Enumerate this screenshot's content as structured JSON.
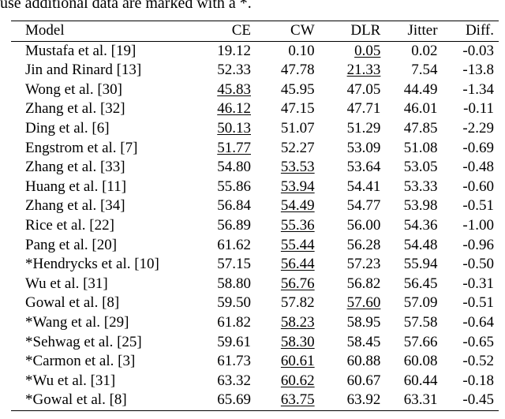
{
  "caption": "use additional data are marked with a *.",
  "table": {
    "headers": [
      "Model",
      "CE",
      "CW",
      "DLR",
      "Jitter",
      "Diff."
    ],
    "rows": [
      {
        "model": "Mustafa et al. [19]",
        "ce": "19.12",
        "cw": "0.10",
        "dlr": "0.05",
        "jitter": "0.02",
        "diff": "-0.03",
        "underline": "dlr"
      },
      {
        "model": "Jin and Rinard [13]",
        "ce": "52.33",
        "cw": "47.78",
        "dlr": "21.33",
        "jitter": "7.54",
        "diff": "-13.8",
        "underline": "dlr"
      },
      {
        "model": "Wong et al. [30]",
        "ce": "45.83",
        "cw": "45.95",
        "dlr": "47.05",
        "jitter": "44.49",
        "diff": "-1.34",
        "underline": "ce"
      },
      {
        "model": "Zhang et al. [32]",
        "ce": "46.12",
        "cw": "47.15",
        "dlr": "47.71",
        "jitter": "46.01",
        "diff": "-0.11",
        "underline": "ce"
      },
      {
        "model": "Ding et al. [6]",
        "ce": "50.13",
        "cw": "51.07",
        "dlr": "51.29",
        "jitter": "47.85",
        "diff": "-2.29",
        "underline": "ce"
      },
      {
        "model": "Engstrom et al. [7]",
        "ce": "51.77",
        "cw": "52.27",
        "dlr": "53.09",
        "jitter": "51.08",
        "diff": "-0.69",
        "underline": "ce"
      },
      {
        "model": "Zhang et al. [33]",
        "ce": "54.80",
        "cw": "53.53",
        "dlr": "53.64",
        "jitter": "53.05",
        "diff": "-0.48",
        "underline": "cw"
      },
      {
        "model": "Huang et al. [11]",
        "ce": "55.86",
        "cw": "53.94",
        "dlr": "54.41",
        "jitter": "53.33",
        "diff": "-0.60",
        "underline": "cw"
      },
      {
        "model": "Zhang et al. [34]",
        "ce": "56.84",
        "cw": "54.49",
        "dlr": "54.77",
        "jitter": "53.98",
        "diff": "-0.51",
        "underline": "cw"
      },
      {
        "model": "Rice et al. [22]",
        "ce": "56.89",
        "cw": "55.36",
        "dlr": "56.00",
        "jitter": "54.36",
        "diff": "-1.00",
        "underline": "cw"
      },
      {
        "model": "Pang et al. [20]",
        "ce": "61.62",
        "cw": "55.44",
        "dlr": "56.28",
        "jitter": "54.48",
        "diff": "-0.96",
        "underline": "cw"
      },
      {
        "model": "*Hendrycks et al. [10]",
        "ce": "57.15",
        "cw": "56.44",
        "dlr": "57.23",
        "jitter": "55.94",
        "diff": "-0.50",
        "underline": "cw"
      },
      {
        "model": "Wu et al. [31]",
        "ce": "58.80",
        "cw": "56.76",
        "dlr": "56.82",
        "jitter": "56.45",
        "diff": "-0.31",
        "underline": "cw"
      },
      {
        "model": "Gowal et al. [8]",
        "ce": "59.50",
        "cw": "57.82",
        "dlr": "57.60",
        "jitter": "57.09",
        "diff": "-0.51",
        "underline": "dlr"
      },
      {
        "model": "*Wang et al. [29]",
        "ce": "61.82",
        "cw": "58.23",
        "dlr": "58.95",
        "jitter": "57.58",
        "diff": "-0.64",
        "underline": "cw"
      },
      {
        "model": "*Sehwag et al. [25]",
        "ce": "59.61",
        "cw": "58.30",
        "dlr": "58.45",
        "jitter": "57.66",
        "diff": "-0.65",
        "underline": "cw"
      },
      {
        "model": "*Carmon et al. [3]",
        "ce": "61.73",
        "cw": "60.61",
        "dlr": "60.88",
        "jitter": "60.08",
        "diff": "-0.52",
        "underline": "cw"
      },
      {
        "model": "*Wu et al. [31]",
        "ce": "63.32",
        "cw": "60.62",
        "dlr": "60.67",
        "jitter": "60.44",
        "diff": "-0.18",
        "underline": "cw"
      },
      {
        "model": "*Gowal et al. [8]",
        "ce": "65.69",
        "cw": "63.75",
        "dlr": "63.92",
        "jitter": "63.31",
        "diff": "-0.45",
        "underline": "cw"
      }
    ]
  }
}
